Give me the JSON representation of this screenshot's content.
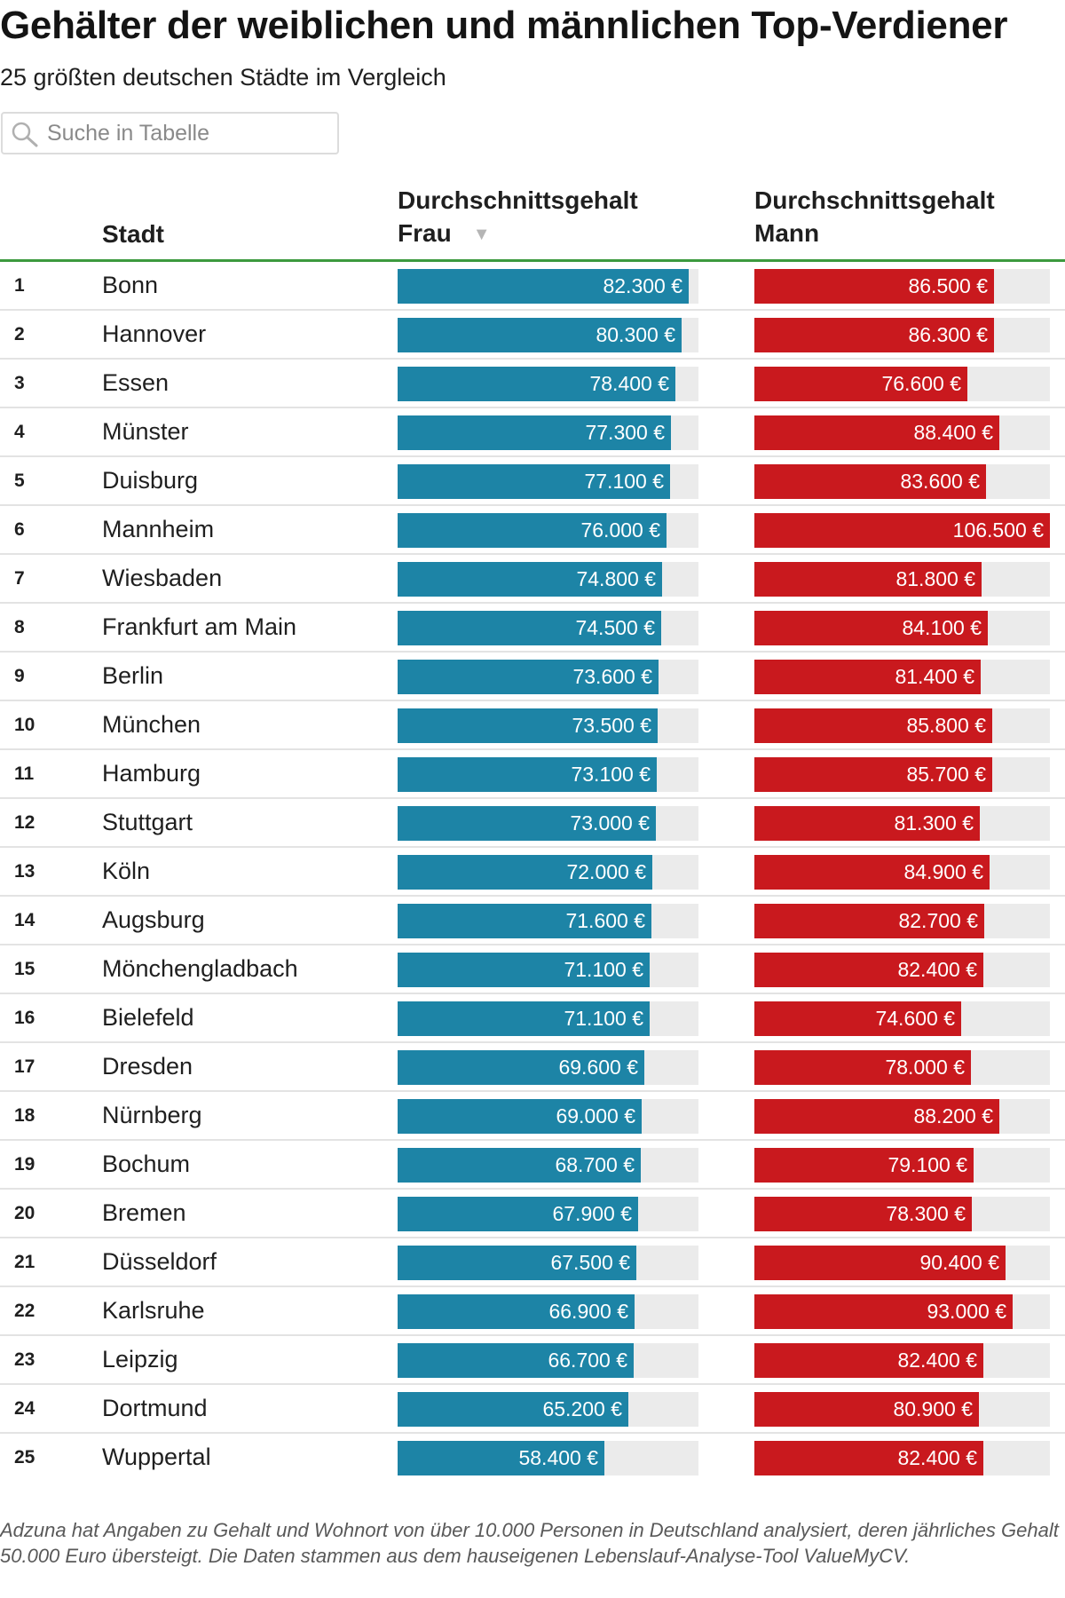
{
  "title": "Gehälter der weiblichen und männlichen Top-Verdiener",
  "subtitle": "25 größten deutschen Städte im Vergleich",
  "search": {
    "placeholder": "Suche in Tabelle",
    "icon": "search-icon"
  },
  "columns": {
    "rank": "",
    "city": "Stadt",
    "female_line1": "Durchschnittsgehalt",
    "female_line2": "Frau",
    "female_sort_indicator": "▼",
    "male_line1": "Durchschnittsgehalt",
    "male_line2": "Mann"
  },
  "colors": {
    "female_bar": "#1d84a6",
    "male_bar": "#c9191e",
    "bar_track": "#ebebeb",
    "header_rule": "#3c9a3e"
  },
  "chart_data": {
    "type": "table",
    "sorted_by": "Durchschnittsgehalt Frau",
    "sort_direction": "descending",
    "scales": {
      "female_max": 85000,
      "male_max": 106500
    },
    "rows": [
      {
        "rank": "1",
        "city": "Bonn",
        "female": 82300,
        "female_label": "82.300 €",
        "male": 86500,
        "male_label": "86.500 €"
      },
      {
        "rank": "2",
        "city": "Hannover",
        "female": 80300,
        "female_label": "80.300 €",
        "male": 86300,
        "male_label": "86.300 €"
      },
      {
        "rank": "3",
        "city": "Essen",
        "female": 78400,
        "female_label": "78.400 €",
        "male": 76600,
        "male_label": "76.600 €"
      },
      {
        "rank": "4",
        "city": "Münster",
        "female": 77300,
        "female_label": "77.300 €",
        "male": 88400,
        "male_label": "88.400 €"
      },
      {
        "rank": "5",
        "city": "Duisburg",
        "female": 77100,
        "female_label": "77.100 €",
        "male": 83600,
        "male_label": "83.600 €"
      },
      {
        "rank": "6",
        "city": "Mannheim",
        "female": 76000,
        "female_label": "76.000 €",
        "male": 106500,
        "male_label": "106.500 €"
      },
      {
        "rank": "7",
        "city": "Wiesbaden",
        "female": 74800,
        "female_label": "74.800 €",
        "male": 81800,
        "male_label": "81.800 €"
      },
      {
        "rank": "8",
        "city": "Frankfurt am Main",
        "female": 74500,
        "female_label": "74.500 €",
        "male": 84100,
        "male_label": "84.100 €"
      },
      {
        "rank": "9",
        "city": "Berlin",
        "female": 73600,
        "female_label": "73.600 €",
        "male": 81400,
        "male_label": "81.400 €"
      },
      {
        "rank": "10",
        "city": "München",
        "female": 73500,
        "female_label": "73.500 €",
        "male": 85800,
        "male_label": "85.800 €"
      },
      {
        "rank": "11",
        "city": "Hamburg",
        "female": 73100,
        "female_label": "73.100 €",
        "male": 85700,
        "male_label": "85.700 €"
      },
      {
        "rank": "12",
        "city": "Stuttgart",
        "female": 73000,
        "female_label": "73.000 €",
        "male": 81300,
        "male_label": "81.300 €"
      },
      {
        "rank": "13",
        "city": "Köln",
        "female": 72000,
        "female_label": "72.000 €",
        "male": 84900,
        "male_label": "84.900 €"
      },
      {
        "rank": "14",
        "city": "Augsburg",
        "female": 71600,
        "female_label": "71.600 €",
        "male": 82700,
        "male_label": "82.700 €"
      },
      {
        "rank": "15",
        "city": "Mönchengladbach",
        "female": 71100,
        "female_label": "71.100 €",
        "male": 82400,
        "male_label": "82.400 €"
      },
      {
        "rank": "16",
        "city": "Bielefeld",
        "female": 71100,
        "female_label": "71.100 €",
        "male": 74600,
        "male_label": "74.600 €"
      },
      {
        "rank": "17",
        "city": "Dresden",
        "female": 69600,
        "female_label": "69.600 €",
        "male": 78000,
        "male_label": "78.000 €"
      },
      {
        "rank": "18",
        "city": "Nürnberg",
        "female": 69000,
        "female_label": "69.000 €",
        "male": 88200,
        "male_label": "88.200 €"
      },
      {
        "rank": "19",
        "city": "Bochum",
        "female": 68700,
        "female_label": "68.700 €",
        "male": 79100,
        "male_label": "79.100 €"
      },
      {
        "rank": "20",
        "city": "Bremen",
        "female": 67900,
        "female_label": "67.900 €",
        "male": 78300,
        "male_label": "78.300 €"
      },
      {
        "rank": "21",
        "city": "Düsseldorf",
        "female": 67500,
        "female_label": "67.500 €",
        "male": 90400,
        "male_label": "90.400 €"
      },
      {
        "rank": "22",
        "city": "Karlsruhe",
        "female": 66900,
        "female_label": "66.900 €",
        "male": 93000,
        "male_label": "93.000 €"
      },
      {
        "rank": "23",
        "city": "Leipzig",
        "female": 66700,
        "female_label": "66.700 €",
        "male": 82400,
        "male_label": "82.400 €"
      },
      {
        "rank": "24",
        "city": "Dortmund",
        "female": 65200,
        "female_label": "65.200 €",
        "male": 80900,
        "male_label": "80.900 €"
      },
      {
        "rank": "25",
        "city": "Wuppertal",
        "female": 58400,
        "female_label": "58.400 €",
        "male": 82400,
        "male_label": "82.400 €"
      }
    ]
  },
  "footnote": "Adzuna hat Angaben zu Gehalt und Wohnort von über 10.000 Personen in Deutschland analysiert, deren jährliches Gehalt 50.000 Euro übersteigt. Die Daten stammen aus dem hauseigenen Lebenslauf-Analyse-Tool ValueMyCV."
}
